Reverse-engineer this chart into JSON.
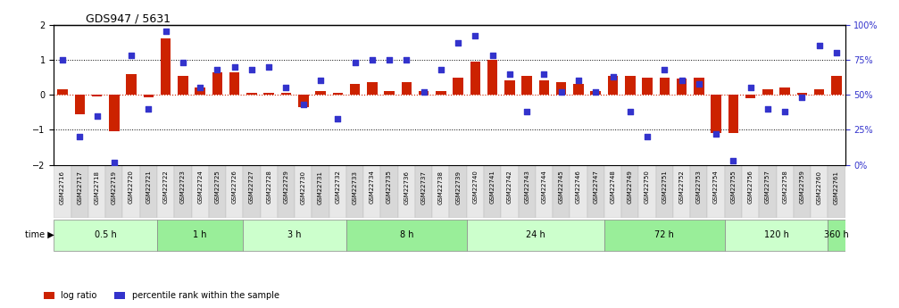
{
  "title": "GDS947 / 5631",
  "samples": [
    "GSM22716",
    "GSM22717",
    "GSM22718",
    "GSM22719",
    "GSM22720",
    "GSM22721",
    "GSM22722",
    "GSM22723",
    "GSM22724",
    "GSM22725",
    "GSM22726",
    "GSM22727",
    "GSM22728",
    "GSM22729",
    "GSM22730",
    "GSM22731",
    "GSM22732",
    "GSM22733",
    "GSM22734",
    "GSM22735",
    "GSM22736",
    "GSM22737",
    "GSM22738",
    "GSM22739",
    "GSM22740",
    "GSM22741",
    "GSM22742",
    "GSM22743",
    "GSM22744",
    "GSM22745",
    "GSM22746",
    "GSM22747",
    "GSM22748",
    "GSM22749",
    "GSM22750",
    "GSM22751",
    "GSM22752",
    "GSM22753",
    "GSM22754",
    "GSM22755",
    "GSM22756",
    "GSM22757",
    "GSM22758",
    "GSM22759",
    "GSM22760",
    "GSM22761"
  ],
  "log_ratio": [
    0.15,
    -0.55,
    -0.05,
    -1.05,
    0.6,
    -0.08,
    1.6,
    0.55,
    0.2,
    0.65,
    0.65,
    0.05,
    0.05,
    0.05,
    -0.35,
    0.1,
    0.05,
    0.3,
    0.35,
    0.1,
    0.35,
    0.1,
    0.1,
    0.5,
    0.95,
    1.0,
    0.4,
    0.55,
    0.4,
    0.35,
    0.3,
    0.1,
    0.55,
    0.55,
    0.5,
    0.5,
    0.45,
    0.5,
    -1.1,
    -1.1,
    -0.1,
    0.15,
    0.2,
    0.05,
    0.15,
    0.55
  ],
  "percentile": [
    75,
    20,
    35,
    2,
    78,
    40,
    95,
    73,
    55,
    68,
    70,
    68,
    70,
    55,
    43,
    60,
    33,
    73,
    75,
    75,
    75,
    52,
    68,
    87,
    92,
    78,
    65,
    38,
    65,
    52,
    60,
    52,
    63,
    38,
    20,
    68,
    60,
    58,
    22,
    3,
    55,
    40,
    38,
    48,
    85,
    80
  ],
  "groups": [
    {
      "label": "0.5 h",
      "start": 0,
      "end": 6,
      "color": "#ccffcc"
    },
    {
      "label": "1 h",
      "start": 6,
      "end": 11,
      "color": "#aaffaa"
    },
    {
      "label": "3 h",
      "start": 11,
      "end": 17,
      "color": "#ccffcc"
    },
    {
      "label": "8 h",
      "start": 17,
      "end": 24,
      "color": "#aaffaa"
    },
    {
      "label": "24 h",
      "start": 24,
      "end": 32,
      "color": "#ccffcc"
    },
    {
      "label": "72 h",
      "start": 32,
      "end": 39,
      "color": "#aaffaa"
    },
    {
      "label": "120 h",
      "start": 39,
      "end": 45,
      "color": "#ccffcc"
    },
    {
      "label": "360 h",
      "start": 45,
      "end": 46,
      "color": "#aaffaa"
    }
  ],
  "ylim_left": [
    -2,
    2
  ],
  "ylim_right": [
    0,
    100
  ],
  "bar_color": "#cc2200",
  "dot_color": "#3333cc",
  "zero_line_color": "#cc2200",
  "ref_line_color": "#000000",
  "bg_color": "#ffffff",
  "tick_label_color": "#000000"
}
